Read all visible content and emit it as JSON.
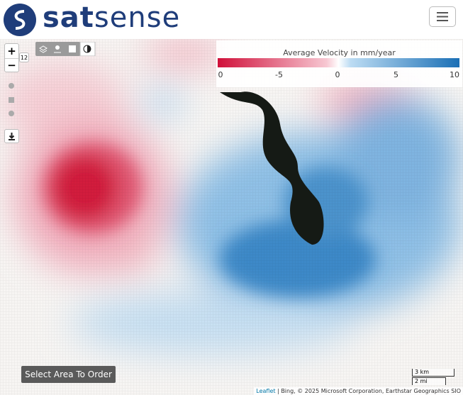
{
  "header": {
    "brand_first": "sat",
    "brand_second": "sense"
  },
  "map": {
    "zoom_in": "+",
    "zoom_out": "−",
    "zoom_level": "12",
    "legend": {
      "title": "Average Velocity in mm/year",
      "ticks": [
        "0",
        "-5",
        "0",
        "5",
        "10"
      ]
    },
    "order_button": "Select Area To Order",
    "scale": {
      "metric": "3 km",
      "imperial": "2 mi"
    },
    "attribution": {
      "leaflet": "Leaflet",
      "rest": " | Bing, © 2025 Microsoft Corporation, Earthstar Geographics SIO"
    }
  }
}
